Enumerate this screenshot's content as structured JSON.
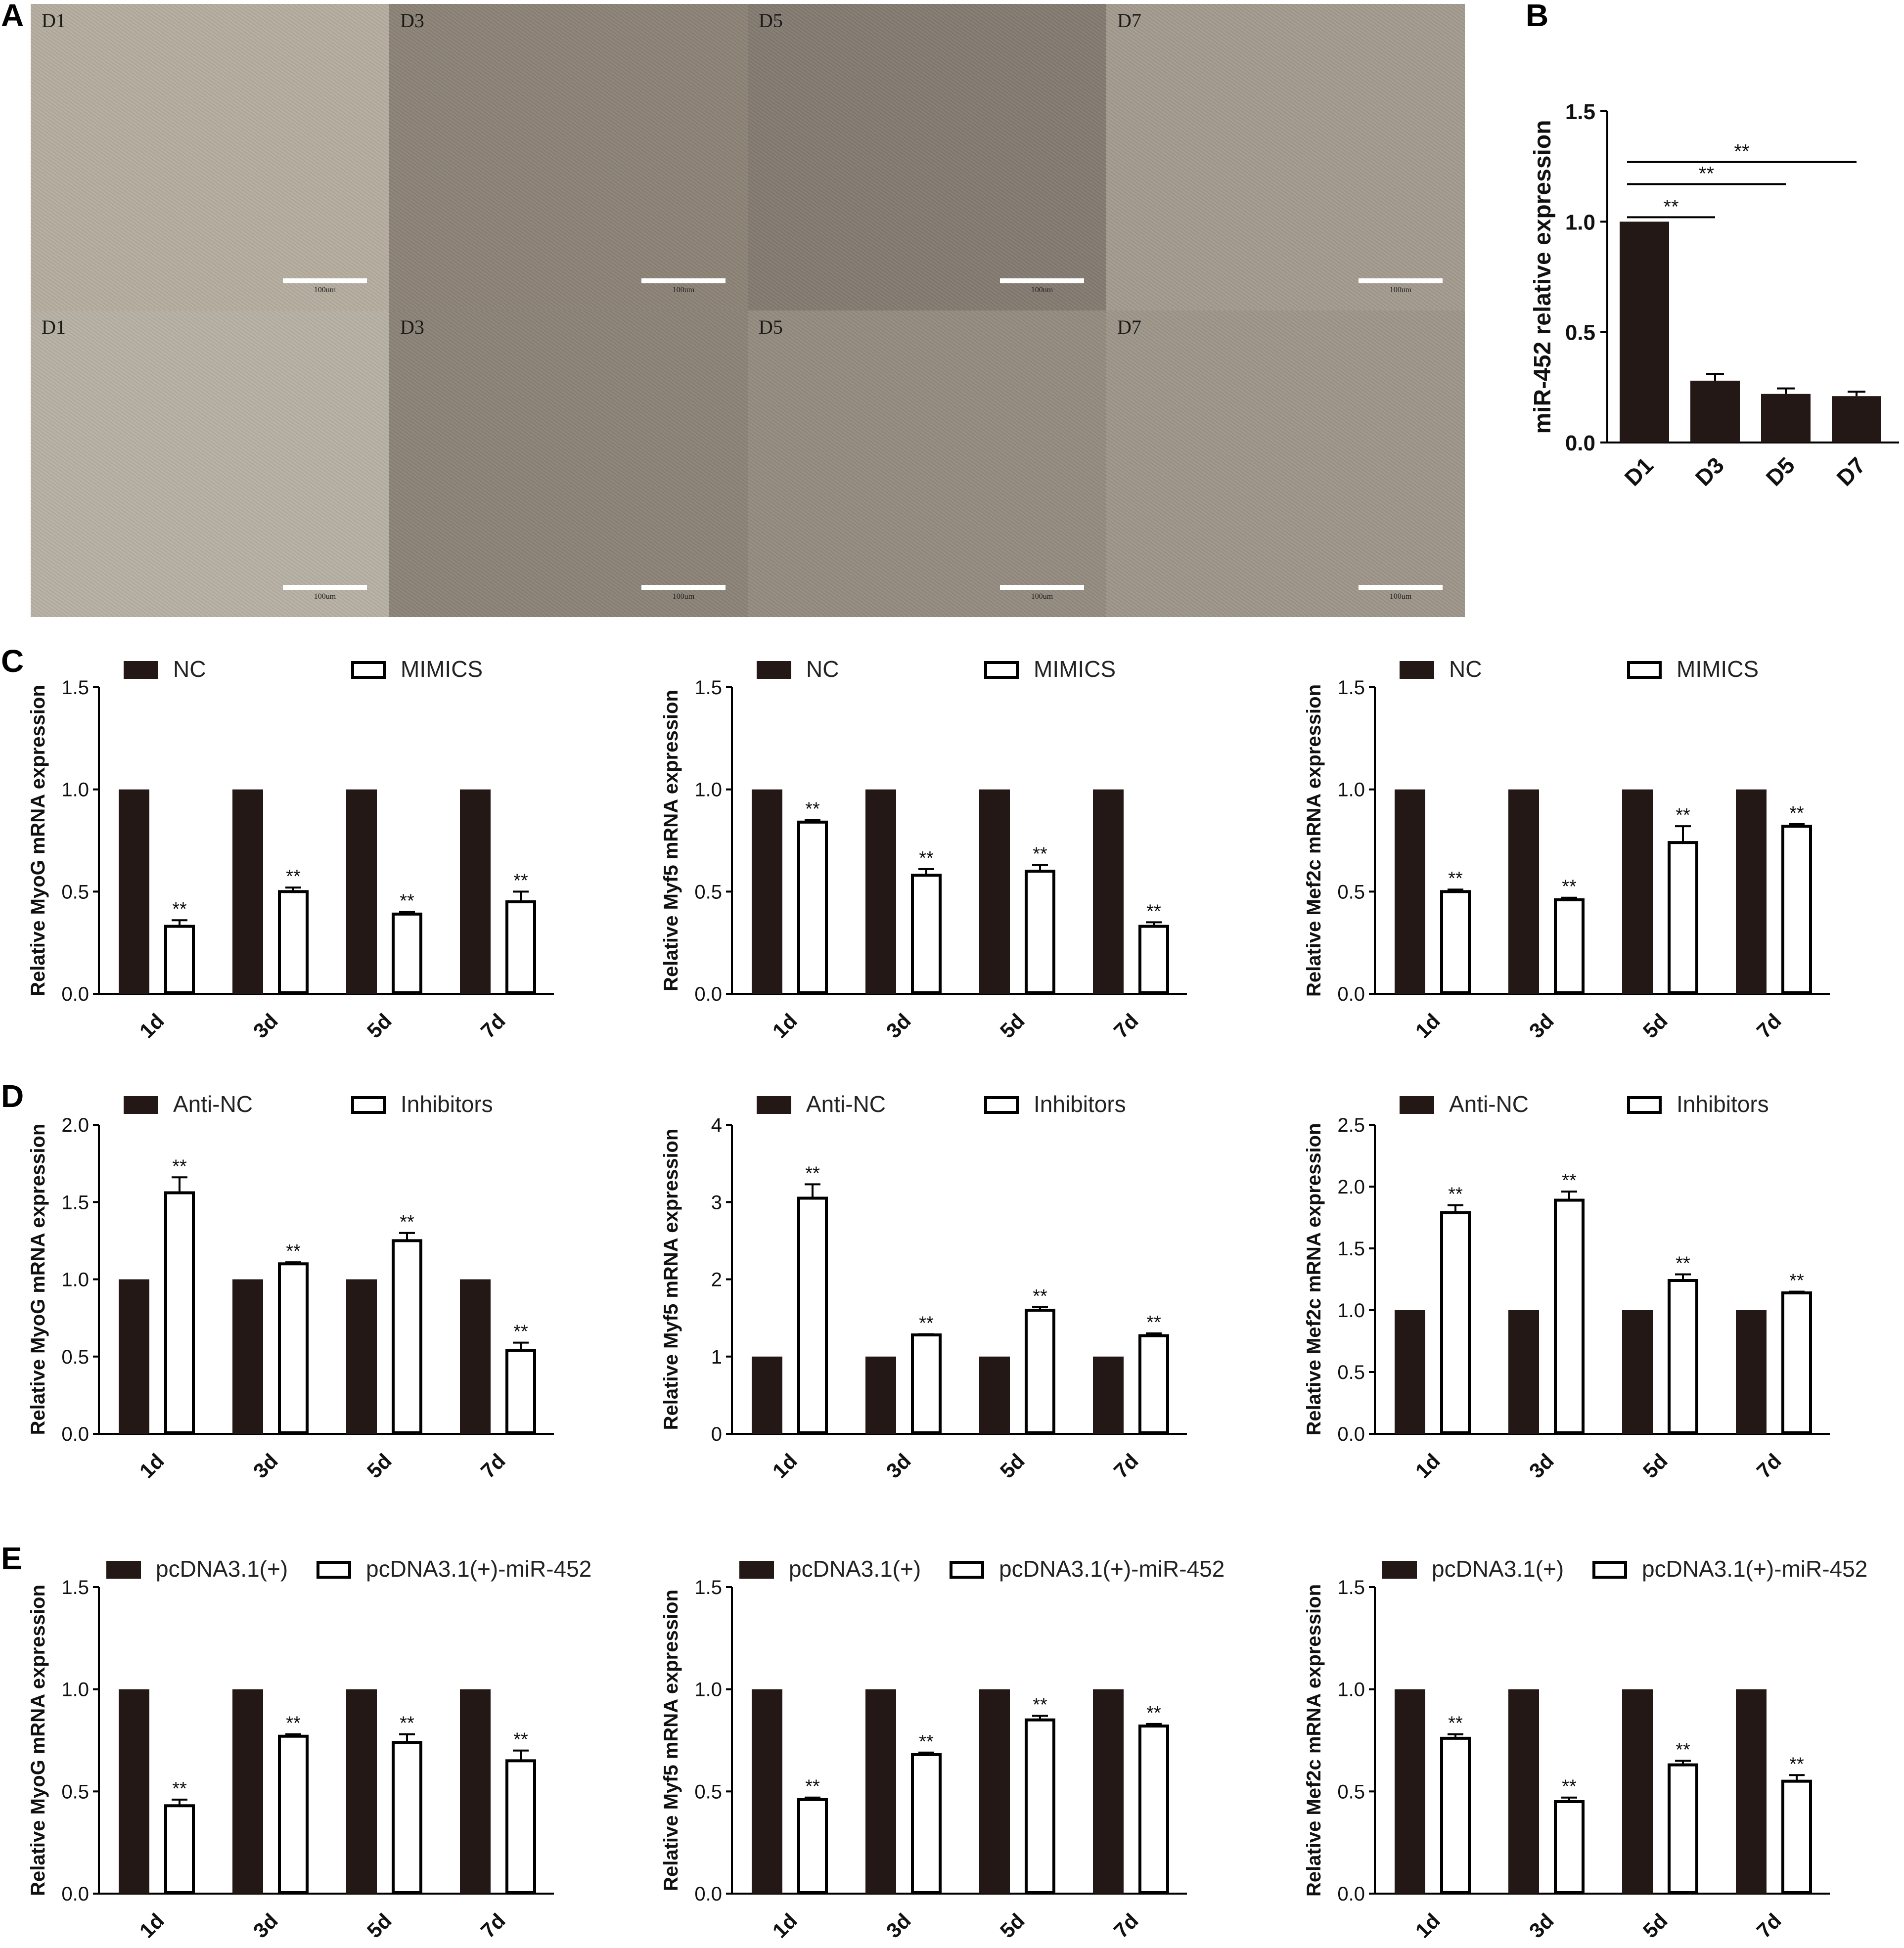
{
  "panel_labels": {
    "a": "A",
    "b": "B",
    "c": "C",
    "d": "D",
    "e": "E"
  },
  "micrographs": {
    "rows": [
      {
        "days": [
          "D1",
          "D3",
          "D5",
          "D7"
        ]
      },
      {
        "days": [
          "D1",
          "D3",
          "D5",
          "D7"
        ]
      }
    ],
    "scale_label": "100um",
    "tile_colors": [
      [
        "#b4ad9f",
        "#8d8377",
        "#847b71",
        "#a39b8e"
      ],
      [
        "#b6b0a4",
        "#8c8378",
        "#958c80",
        "#9e968a"
      ]
    ]
  },
  "styles": {
    "bar_dark": "#231815",
    "bar_light": "#ffffff",
    "axis": "#000000"
  },
  "chart_data": [
    {
      "id": "B",
      "type": "bar",
      "xlabel": "",
      "ylabel": "miR-452 relative expression",
      "categories": [
        "D1",
        "D3",
        "D5",
        "D7"
      ],
      "values": [
        1.0,
        0.28,
        0.22,
        0.21
      ],
      "errors": [
        0.0,
        0.03,
        0.025,
        0.02
      ],
      "ylim": [
        0,
        1.5
      ],
      "yticks": [
        "0.0",
        "0.5",
        "1.0",
        "1.5"
      ],
      "significance": [
        {
          "from": "D1",
          "to": "D3",
          "label": "**"
        },
        {
          "from": "D1",
          "to": "D5",
          "label": "**"
        },
        {
          "from": "D1",
          "to": "D7",
          "label": "**"
        }
      ]
    },
    {
      "id": "C1",
      "type": "bar",
      "ylabel": "Relative MyoG mRNA expression",
      "categories": [
        "1d",
        "3d",
        "5d",
        "7d"
      ],
      "ylim": [
        0,
        1.5
      ],
      "yticks": [
        "0.0",
        "0.5",
        "1.0",
        "1.5"
      ],
      "series": [
        {
          "name": "NC",
          "values": [
            1.0,
            1.0,
            1.0,
            1.0
          ]
        },
        {
          "name": "MIMICS",
          "values": [
            0.33,
            0.5,
            0.39,
            0.45
          ],
          "errors": [
            0.03,
            0.02,
            0.01,
            0.05
          ],
          "sig": [
            "**",
            "**",
            "**",
            "**"
          ]
        }
      ]
    },
    {
      "id": "C2",
      "type": "bar",
      "ylabel": "Relative Myf5 mRNA expression",
      "categories": [
        "1d",
        "3d",
        "5d",
        "7d"
      ],
      "ylim": [
        0,
        1.5
      ],
      "yticks": [
        "0.0",
        "0.5",
        "1.0",
        "1.5"
      ],
      "series": [
        {
          "name": "NC",
          "values": [
            1.0,
            1.0,
            1.0,
            1.0
          ]
        },
        {
          "name": "MIMICS",
          "values": [
            0.84,
            0.58,
            0.6,
            0.33
          ],
          "errors": [
            0.01,
            0.03,
            0.03,
            0.02
          ],
          "sig": [
            "**",
            "**",
            "**",
            "**"
          ]
        }
      ]
    },
    {
      "id": "C3",
      "type": "bar",
      "ylabel": "Relative Mef2c mRNA expression",
      "categories": [
        "1d",
        "3d",
        "5d",
        "7d"
      ],
      "ylim": [
        0,
        1.5
      ],
      "yticks": [
        "0.0",
        "0.5",
        "1.0",
        "1.5"
      ],
      "series": [
        {
          "name": "NC",
          "values": [
            1.0,
            1.0,
            1.0,
            1.0
          ]
        },
        {
          "name": "MIMICS",
          "values": [
            0.5,
            0.46,
            0.74,
            0.82
          ],
          "errors": [
            0.01,
            0.01,
            0.08,
            0.01
          ],
          "sig": [
            "**",
            "**",
            "**",
            "**"
          ]
        }
      ]
    },
    {
      "id": "D1",
      "type": "bar",
      "ylabel": "Relative MyoG mRNA expression",
      "categories": [
        "1d",
        "3d",
        "5d",
        "7d"
      ],
      "ylim": [
        0,
        2.0
      ],
      "yticks": [
        "0.0",
        "0.5",
        "1.0",
        "1.5",
        "2.0"
      ],
      "series": [
        {
          "name": "Anti-NC",
          "values": [
            1.0,
            1.0,
            1.0,
            1.0
          ]
        },
        {
          "name": "Inhibitors",
          "values": [
            1.56,
            1.1,
            1.25,
            0.54
          ],
          "errors": [
            0.1,
            0.01,
            0.05,
            0.05
          ],
          "sig": [
            "**",
            "**",
            "**",
            "**"
          ]
        }
      ]
    },
    {
      "id": "D2",
      "type": "bar",
      "ylabel": "Relative Myf5 mRNA expression",
      "categories": [
        "1d",
        "3d",
        "5d",
        "7d"
      ],
      "ylim": [
        0,
        4
      ],
      "yticks": [
        "0",
        "1",
        "2",
        "3",
        "4"
      ],
      "series": [
        {
          "name": "Anti-NC",
          "values": [
            1.0,
            1.0,
            1.0,
            1.0
          ]
        },
        {
          "name": "Inhibitors",
          "values": [
            3.05,
            1.28,
            1.6,
            1.27
          ],
          "errors": [
            0.18,
            0.01,
            0.04,
            0.03
          ],
          "sig": [
            "**",
            "**",
            "**",
            "**"
          ]
        }
      ]
    },
    {
      "id": "D3",
      "type": "bar",
      "ylabel": "Relative Mef2c mRNA expression",
      "categories": [
        "1d",
        "3d",
        "5d",
        "7d"
      ],
      "ylim": [
        0,
        2.5
      ],
      "yticks": [
        "0.0",
        "0.5",
        "1.0",
        "1.5",
        "2.0",
        "2.5"
      ],
      "series": [
        {
          "name": "Anti-NC",
          "values": [
            1.0,
            1.0,
            1.0,
            1.0
          ]
        },
        {
          "name": "Inhibitors",
          "values": [
            1.79,
            1.89,
            1.24,
            1.14
          ],
          "errors": [
            0.06,
            0.07,
            0.05,
            0.01
          ],
          "sig": [
            "**",
            "**",
            "**",
            "**"
          ]
        }
      ]
    },
    {
      "id": "E1",
      "type": "bar",
      "ylabel": "Relative MyoG mRNA expression",
      "categories": [
        "1d",
        "3d",
        "5d",
        "7d"
      ],
      "ylim": [
        0,
        1.5
      ],
      "yticks": [
        "0.0",
        "0.5",
        "1.0",
        "1.5"
      ],
      "series": [
        {
          "name": "pcDNA3.1(+)",
          "values": [
            1.0,
            1.0,
            1.0,
            1.0
          ]
        },
        {
          "name": "pcDNA3.1(+)-miR-452",
          "values": [
            0.43,
            0.77,
            0.74,
            0.65
          ],
          "errors": [
            0.03,
            0.01,
            0.04,
            0.05
          ],
          "sig": [
            "**",
            "**",
            "**",
            "**"
          ]
        }
      ]
    },
    {
      "id": "E2",
      "type": "bar",
      "ylabel": "Relative Myf5 mRNA expression",
      "categories": [
        "1d",
        "3d",
        "5d",
        "7d"
      ],
      "ylim": [
        0,
        1.5
      ],
      "yticks": [
        "0.0",
        "0.5",
        "1.0",
        "1.5"
      ],
      "series": [
        {
          "name": "pcDNA3.1(+)",
          "values": [
            1.0,
            1.0,
            1.0,
            1.0
          ]
        },
        {
          "name": "pcDNA3.1(+)-miR-452",
          "values": [
            0.46,
            0.68,
            0.85,
            0.82
          ],
          "errors": [
            0.01,
            0.01,
            0.02,
            0.01
          ],
          "sig": [
            "**",
            "**",
            "**",
            "**"
          ]
        }
      ]
    },
    {
      "id": "E3",
      "type": "bar",
      "ylabel": "Relative Mef2c mRNA expression",
      "categories": [
        "1d",
        "3d",
        "5d",
        "7d"
      ],
      "ylim": [
        0,
        1.5
      ],
      "yticks": [
        "0.0",
        "0.5",
        "1.0",
        "1.5"
      ],
      "series": [
        {
          "name": "pcDNA3.1(+)",
          "values": [
            1.0,
            1.0,
            1.0,
            1.0
          ]
        },
        {
          "name": "pcDNA3.1(+)-miR-452",
          "values": [
            0.76,
            0.45,
            0.63,
            0.55
          ],
          "errors": [
            0.02,
            0.02,
            0.02,
            0.03
          ],
          "sig": [
            "**",
            "**",
            "**",
            "**"
          ]
        }
      ]
    }
  ]
}
